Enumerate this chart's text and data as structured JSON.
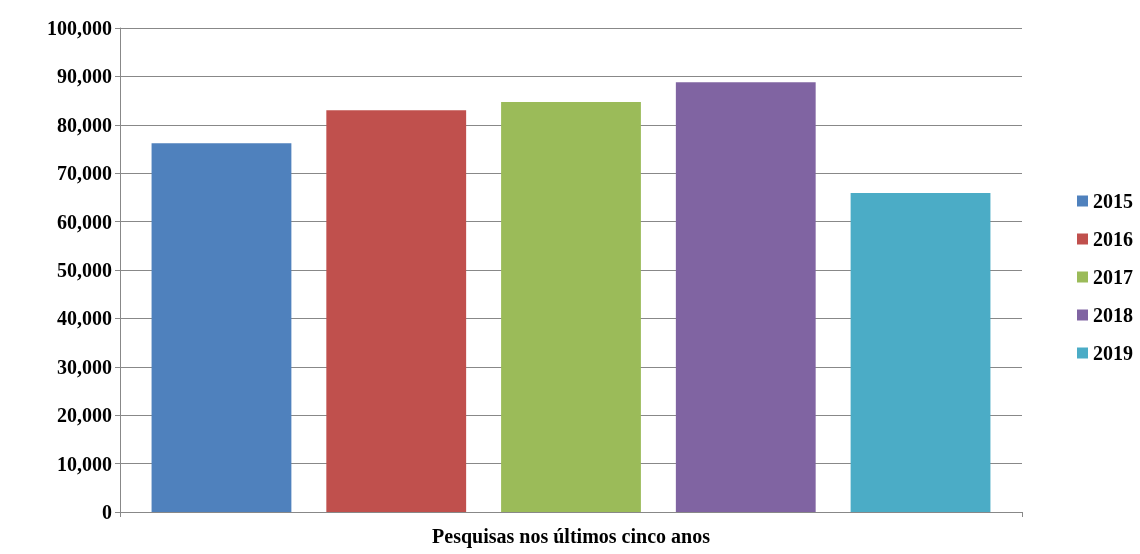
{
  "chart_data": {
    "type": "bar",
    "categories": [
      "Pesquisas nos últimos cinco anos"
    ],
    "series": [
      {
        "name": "2015",
        "color": "#4f81bd",
        "values": [
          76200
        ]
      },
      {
        "name": "2016",
        "color": "#c0504d",
        "values": [
          83000
        ]
      },
      {
        "name": "2017",
        "color": "#9bbb59",
        "values": [
          84700
        ]
      },
      {
        "name": "2018",
        "color": "#8064a2",
        "values": [
          88800
        ]
      },
      {
        "name": "2019",
        "color": "#4bacc6",
        "values": [
          65900
        ]
      }
    ],
    "ylim": [
      0,
      100000
    ],
    "yticks": [
      0,
      {
        "value": 10000,
        "label": "10,000"
      },
      {
        "value": 20000,
        "label": "20,000"
      },
      {
        "value": 30000,
        "label": "30,000"
      },
      {
        "value": 40000,
        "label": "40,000"
      },
      {
        "value": 50000,
        "label": "50,000"
      },
      {
        "value": 60000,
        "label": "60,000"
      },
      {
        "value": 70000,
        "label": "70,000"
      },
      {
        "value": 80000,
        "label": "80,000"
      },
      {
        "value": 90000,
        "label": "90,000"
      },
      {
        "value": 100000,
        "label": "100,000"
      }
    ],
    "grid": "y",
    "legend": "right"
  }
}
